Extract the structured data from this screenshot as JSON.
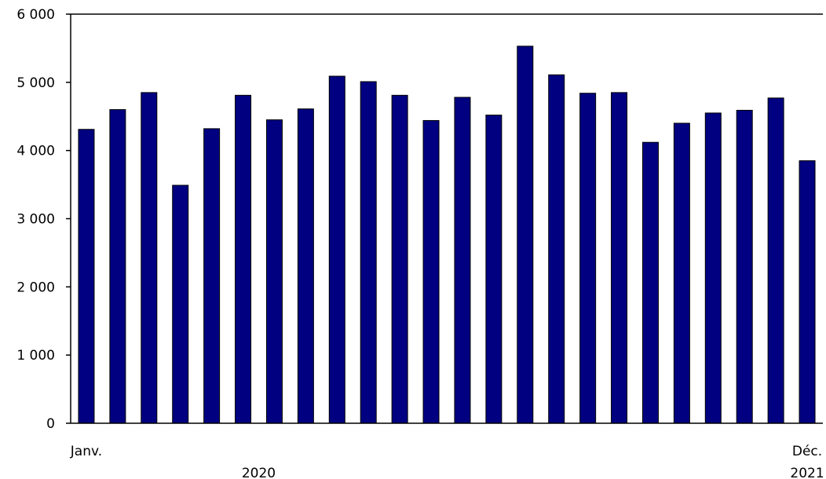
{
  "chart_data": {
    "type": "bar",
    "title": "",
    "xlabel": "",
    "ylabel": "",
    "ylim": [
      0,
      6000
    ],
    "yticks": [
      0,
      1000,
      2000,
      3000,
      4000,
      5000,
      6000
    ],
    "ytick_labels": [
      "0",
      "1 000",
      "2 000",
      "3 000",
      "4 000",
      "5 000",
      "6 000"
    ],
    "x_tick_labels": {
      "first_month": "Janv.",
      "last_month": "Déc.",
      "year_first": "2020",
      "year_last": "2021"
    },
    "categories": [
      "2020-01",
      "2020-02",
      "2020-03",
      "2020-04",
      "2020-05",
      "2020-06",
      "2020-07",
      "2020-08",
      "2020-09",
      "2020-10",
      "2020-11",
      "2020-12",
      "2021-01",
      "2021-02",
      "2021-03",
      "2021-04",
      "2021-05",
      "2021-06",
      "2021-07",
      "2021-08",
      "2021-09",
      "2021-10",
      "2021-11",
      "2021-12"
    ],
    "values": [
      4310,
      4600,
      4850,
      3490,
      4320,
      4810,
      4450,
      4610,
      5090,
      5010,
      4810,
      4440,
      4780,
      4520,
      5530,
      5110,
      4840,
      4850,
      4120,
      4400,
      4550,
      4590,
      4770,
      3850
    ],
    "bar_color": "#000080",
    "grid": false
  }
}
